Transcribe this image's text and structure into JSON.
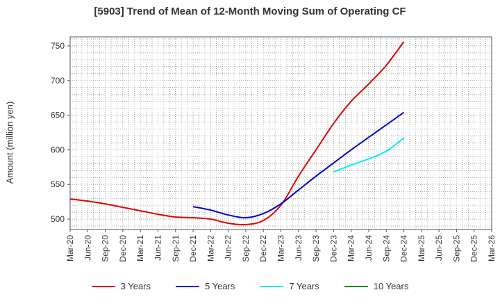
{
  "chart_data": {
    "type": "line",
    "title": "[5903]  Trend of Mean of 12-Month Moving Sum of Operating CF",
    "xlabel": "",
    "ylabel": "Amount (million yen)",
    "ylim": [
      485,
      763
    ],
    "yticks": [
      500,
      550,
      600,
      650,
      700,
      750
    ],
    "x_categories": [
      "Mar-20",
      "Jun-20",
      "Sep-20",
      "Dec-20",
      "Mar-21",
      "Jun-21",
      "Sep-21",
      "Dec-21",
      "Mar-22",
      "Jun-22",
      "Sep-22",
      "Dec-22",
      "Mar-23",
      "Jun-23",
      "Sep-23",
      "Dec-23",
      "Mar-24",
      "Jun-24",
      "Sep-24",
      "Dec-24",
      "Mar-25",
      "Jun-25"
    ],
    "x_tick_labels": [
      "Mar-20",
      "Jun-20",
      "Sep-20",
      "Dec-20",
      "Mar-21",
      "Jun-21",
      "Sep-21",
      "Dec-21",
      "Mar-22",
      "Jun-22",
      "Sep-22",
      "Dec-22",
      "Mar-23",
      "Jun-23",
      "Sep-23",
      "Dec-23",
      "Mar-24",
      "Jun-24",
      "Sep-24",
      "Dec-24",
      "Mar-25",
      "Jun-25",
      "Sep-25",
      "Dec-25",
      "Mar-26"
    ],
    "grid": true,
    "legend_position": "bottom",
    "series": [
      {
        "name": "3 Years",
        "color": "#dd0000",
        "values": [
          529,
          526,
          522,
          517,
          512,
          507,
          503,
          502,
          500,
          494,
          492,
          498,
          520,
          562,
          600,
          638,
          670,
          695,
          722,
          756,
          null,
          null
        ]
      },
      {
        "name": "5 Years",
        "color": "#0000cc",
        "values": [
          null,
          null,
          null,
          null,
          null,
          null,
          null,
          518,
          513,
          506,
          502,
          508,
          522,
          542,
          562,
          581,
          600,
          618,
          636,
          654,
          null,
          null
        ]
      },
      {
        "name": "7 Years",
        "color": "#00eeee",
        "values": [
          null,
          null,
          null,
          null,
          null,
          null,
          null,
          null,
          null,
          null,
          null,
          null,
          null,
          null,
          null,
          568,
          578,
          587,
          598,
          617,
          null,
          null
        ]
      },
      {
        "name": "10 Years",
        "color": "#008800",
        "values": [
          null,
          null,
          null,
          null,
          null,
          null,
          null,
          null,
          null,
          null,
          null,
          null,
          null,
          null,
          null,
          null,
          null,
          null,
          null,
          null,
          null,
          null
        ]
      }
    ]
  }
}
